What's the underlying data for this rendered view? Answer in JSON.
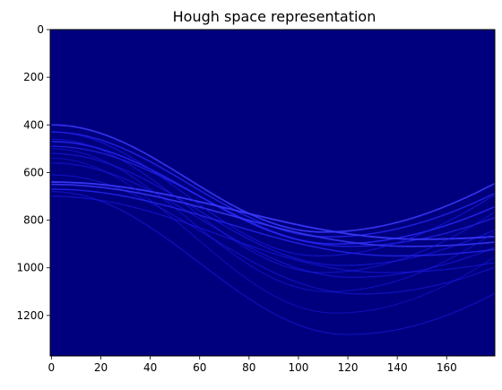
{
  "chart_data": {
    "type": "heatmap",
    "title": "Hough space representation",
    "xlabel": "",
    "ylabel": "",
    "x_ticks": [
      0,
      20,
      40,
      60,
      80,
      100,
      120,
      140,
      160
    ],
    "y_ticks": [
      0,
      200,
      400,
      600,
      800,
      1000,
      1200
    ],
    "xlim": [
      -0.5,
      179.5
    ],
    "ylim": [
      1370,
      0
    ],
    "grid": false,
    "colormap": {
      "background": "#00007f",
      "low": "#0000aa",
      "high": "#3b3bff",
      "peak": "#7a7aff"
    },
    "curves": [
      {
        "rho0": 400,
        "amp": 450,
        "phase": 110,
        "intensity": 0.9
      },
      {
        "rho0": 430,
        "amp": 440,
        "phase": 112,
        "intensity": 0.7
      },
      {
        "rho0": 470,
        "amp": 430,
        "phase": 115,
        "intensity": 0.8
      },
      {
        "rho0": 490,
        "amp": 420,
        "phase": 120,
        "intensity": 0.6
      },
      {
        "rho0": 520,
        "amp": 470,
        "phase": 118,
        "intensity": 0.55
      },
      {
        "rho0": 560,
        "amp": 480,
        "phase": 122,
        "intensity": 0.5
      },
      {
        "rho0": 610,
        "amp": 500,
        "phase": 125,
        "intensity": 0.45
      },
      {
        "rho0": 640,
        "amp": 240,
        "phase": 150,
        "intensity": 1.0
      },
      {
        "rho0": 650,
        "amp": 260,
        "phase": 145,
        "intensity": 0.85
      },
      {
        "rho0": 670,
        "amp": 280,
        "phase": 140,
        "intensity": 0.7
      },
      {
        "rho0": 680,
        "amp": 600,
        "phase": 120,
        "intensity": 0.45
      },
      {
        "rho0": 700,
        "amp": 320,
        "phase": 135,
        "intensity": 0.5
      },
      {
        "rho0": 430,
        "amp": 520,
        "phase": 108,
        "intensity": 0.5
      },
      {
        "rho0": 460,
        "amp": 560,
        "phase": 110,
        "intensity": 0.45
      },
      {
        "rho0": 500,
        "amp": 600,
        "phase": 112,
        "intensity": 0.4
      },
      {
        "rho0": 540,
        "amp": 650,
        "phase": 115,
        "intensity": 0.35
      }
    ]
  }
}
